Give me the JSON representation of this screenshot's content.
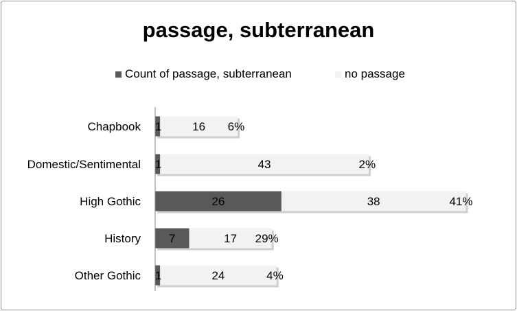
{
  "chart_data": {
    "type": "bar",
    "orientation": "horizontal",
    "stacked": true,
    "title": "passage, subterranean",
    "categories": [
      "Chapbook",
      "Domestic/Sentimental",
      "High Gothic",
      "History",
      "Other Gothic"
    ],
    "series": [
      {
        "name": "Count of passage, subterranean",
        "values": [
          1,
          1,
          26,
          7,
          1
        ],
        "color": "#595959"
      },
      {
        "name": "no passage",
        "values": [
          16,
          43,
          38,
          17,
          24
        ],
        "color": "#f2f2f2"
      }
    ],
    "percent_labels": [
      "6%",
      "2%",
      "41%",
      "29%",
      "4%"
    ],
    "xlabel": "",
    "ylabel": "",
    "grid": false,
    "legend_position": "top"
  }
}
